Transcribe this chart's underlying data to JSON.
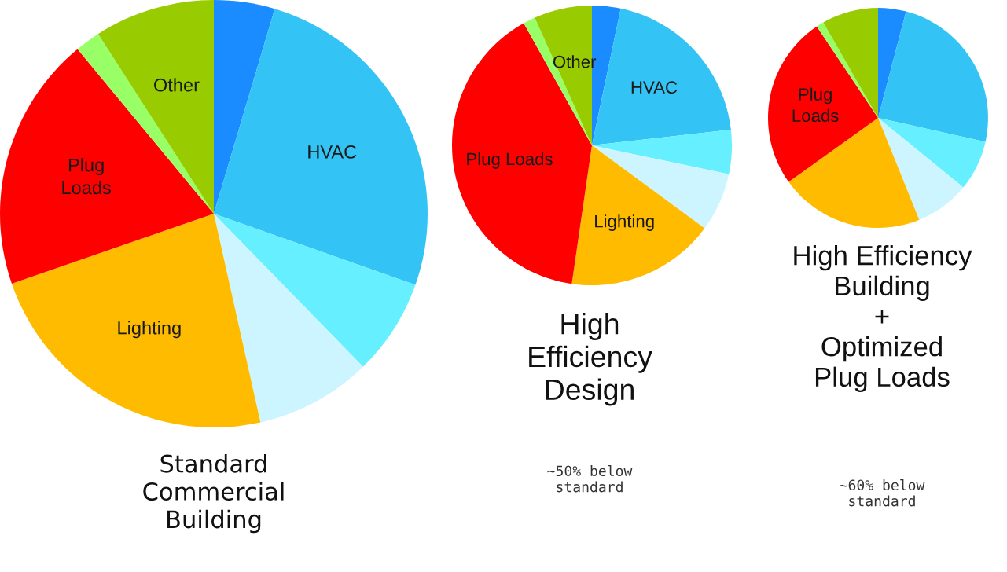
{
  "chart_data": [
    {
      "type": "pie",
      "title": "Standard\nCommercial\nBuilding",
      "categories": [
        null,
        "HVAC",
        null,
        null,
        "Lighting",
        "Plug\nLoads",
        null,
        "Other"
      ],
      "values": [
        4.6,
        25.8,
        7.3,
        8.8,
        23.2,
        19.3,
        1.9,
        9.1
      ],
      "colors": [
        "#1a8cff",
        "#33c3f5",
        "#66f0ff",
        "#ccf5ff",
        "#ffbb00",
        "#ff0000",
        "#99ff66",
        "#99cc00"
      ]
    },
    {
      "type": "pie",
      "title": "High\nEfficiency\nDesign",
      "subtitle": "~50% below\nstandard",
      "categories": [
        null,
        "HVAC",
        null,
        null,
        "Lighting",
        "Plug Loads",
        null,
        "Other"
      ],
      "values": [
        3.3,
        19.9,
        5.1,
        6.8,
        17.2,
        39.6,
        1.4,
        6.7
      ],
      "colors": [
        "#1a8cff",
        "#33c3f5",
        "#66f0ff",
        "#ccf5ff",
        "#ffbb00",
        "#ff0000",
        "#99ff66",
        "#99cc00"
      ]
    },
    {
      "type": "pie",
      "title": "High Efficiency\nBuilding\n+\nOptimized\nPlug Loads",
      "subtitle": "~60% below\nstandard",
      "categories": [
        null,
        null,
        null,
        null,
        null,
        "Plug\nLoads",
        null,
        null
      ],
      "values": [
        4.1,
        24.4,
        7.4,
        8.0,
        21.2,
        25.5,
        1.1,
        8.3
      ],
      "colors": [
        "#1a8cff",
        "#33c3f5",
        "#66f0ff",
        "#ccf5ff",
        "#ffbb00",
        "#ff0000",
        "#99ff66",
        "#99cc00"
      ]
    }
  ]
}
